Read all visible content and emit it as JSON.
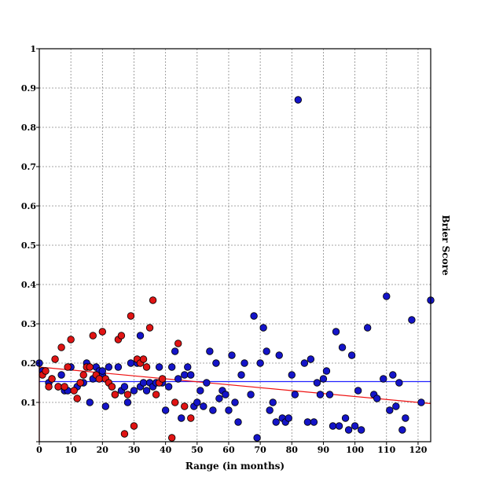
{
  "chart_data": {
    "type": "scatter",
    "title": "",
    "xlabel": "Range (in months)",
    "ylabel": "Brier Score",
    "xlim": [
      0,
      124
    ],
    "ylim": [
      0,
      1
    ],
    "grid": true,
    "legend": "none",
    "x_ticks": [
      "0",
      "10",
      "20",
      "30",
      "40",
      "50",
      "60",
      "70",
      "80",
      "90",
      "100",
      "110",
      "120"
    ],
    "y_ticks": [
      "",
      "0.1",
      "0.2",
      "0.3",
      "0.4",
      "0.5",
      "0.6",
      "0.7",
      "0.8",
      "0.9",
      "1"
    ],
    "colors": {
      "blue": "#1414c8",
      "red": "#e01414",
      "blue_line": "#2222ff",
      "red_line": "#ee1111"
    },
    "series": [
      {
        "color": "blue",
        "points": [
          [
            0,
            0.2
          ],
          [
            1,
            0.18
          ],
          [
            3,
            0.15
          ],
          [
            4,
            0.16
          ],
          [
            6,
            0.14
          ],
          [
            7,
            0.17
          ],
          [
            8,
            0.13
          ],
          [
            9,
            0.13
          ],
          [
            10,
            0.19
          ],
          [
            12,
            0.14
          ],
          [
            13,
            0.15
          ],
          [
            14,
            0.15
          ],
          [
            15,
            0.2
          ],
          [
            16,
            0.1
          ],
          [
            17,
            0.16
          ],
          [
            18,
            0.19
          ],
          [
            19,
            0.18
          ],
          [
            20,
            0.17
          ],
          [
            20,
            0.18
          ],
          [
            21,
            0.09
          ],
          [
            22,
            0.19
          ],
          [
            23,
            0.14
          ],
          [
            24,
            0.12
          ],
          [
            25,
            0.19
          ],
          [
            26,
            0.13
          ],
          [
            27,
            0.14
          ],
          [
            28,
            0.1
          ],
          [
            29,
            0.2
          ],
          [
            30,
            0.13
          ],
          [
            31,
            0.2
          ],
          [
            32,
            0.27
          ],
          [
            32,
            0.14
          ],
          [
            33,
            0.15
          ],
          [
            34,
            0.13
          ],
          [
            35,
            0.15
          ],
          [
            36,
            0.14
          ],
          [
            37,
            0.15
          ],
          [
            38,
            0.19
          ],
          [
            39,
            0.15
          ],
          [
            40,
            0.08
          ],
          [
            41,
            0.14
          ],
          [
            42,
            0.19
          ],
          [
            43,
            0.23
          ],
          [
            44,
            0.16
          ],
          [
            45,
            0.06
          ],
          [
            46,
            0.17
          ],
          [
            47,
            0.19
          ],
          [
            48,
            0.17
          ],
          [
            49,
            0.09
          ],
          [
            50,
            0.1
          ],
          [
            51,
            0.13
          ],
          [
            52,
            0.09
          ],
          [
            53,
            0.15
          ],
          [
            54,
            0.23
          ],
          [
            55,
            0.08
          ],
          [
            56,
            0.2
          ],
          [
            57,
            0.11
          ],
          [
            58,
            0.13
          ],
          [
            59,
            0.12
          ],
          [
            60,
            0.08
          ],
          [
            61,
            0.22
          ],
          [
            62,
            0.1
          ],
          [
            63,
            0.05
          ],
          [
            64,
            0.17
          ],
          [
            65,
            0.2
          ],
          [
            67,
            0.12
          ],
          [
            68,
            0.32
          ],
          [
            69,
            0.01
          ],
          [
            70,
            0.2
          ],
          [
            71,
            0.29
          ],
          [
            72,
            0.23
          ],
          [
            73,
            0.08
          ],
          [
            74,
            0.1
          ],
          [
            75,
            0.05
          ],
          [
            76,
            0.22
          ],
          [
            77,
            0.06
          ],
          [
            78,
            0.05
          ],
          [
            79,
            0.06
          ],
          [
            80,
            0.17
          ],
          [
            81,
            0.12
          ],
          [
            82,
            0.87
          ],
          [
            84,
            0.2
          ],
          [
            85,
            0.05
          ],
          [
            86,
            0.21
          ],
          [
            87,
            0.05
          ],
          [
            88,
            0.15
          ],
          [
            89,
            0.12
          ],
          [
            90,
            0.16
          ],
          [
            91,
            0.18
          ],
          [
            92,
            0.12
          ],
          [
            93,
            0.04
          ],
          [
            94,
            0.28
          ],
          [
            95,
            0.04
          ],
          [
            96,
            0.24
          ],
          [
            97,
            0.06
          ],
          [
            98,
            0.03
          ],
          [
            99,
            0.22
          ],
          [
            100,
            0.04
          ],
          [
            101,
            0.13
          ],
          [
            102,
            0.03
          ],
          [
            104,
            0.29
          ],
          [
            106,
            0.12
          ],
          [
            107,
            0.11
          ],
          [
            109,
            0.16
          ],
          [
            110,
            0.37
          ],
          [
            111,
            0.08
          ],
          [
            112,
            0.17
          ],
          [
            113,
            0.09
          ],
          [
            114,
            0.15
          ],
          [
            115,
            0.03
          ],
          [
            116,
            0.06
          ],
          [
            118,
            0.31
          ],
          [
            121,
            0.1
          ],
          [
            124,
            0.36
          ]
        ]
      },
      {
        "color": "red",
        "points": [
          [
            1,
            0.17
          ],
          [
            2,
            0.18
          ],
          [
            3,
            0.14
          ],
          [
            4,
            0.16
          ],
          [
            5,
            0.21
          ],
          [
            6,
            0.14
          ],
          [
            7,
            0.24
          ],
          [
            8,
            0.14
          ],
          [
            9,
            0.19
          ],
          [
            10,
            0.26
          ],
          [
            11,
            0.13
          ],
          [
            12,
            0.11
          ],
          [
            13,
            0.15
          ],
          [
            14,
            0.17
          ],
          [
            15,
            0.19
          ],
          [
            16,
            0.19
          ],
          [
            17,
            0.27
          ],
          [
            18,
            0.17
          ],
          [
            19,
            0.16
          ],
          [
            20,
            0.28
          ],
          [
            21,
            0.16
          ],
          [
            22,
            0.15
          ],
          [
            23,
            0.14
          ],
          [
            24,
            0.12
          ],
          [
            25,
            0.26
          ],
          [
            26,
            0.27
          ],
          [
            27,
            0.02
          ],
          [
            28,
            0.12
          ],
          [
            29,
            0.32
          ],
          [
            30,
            0.04
          ],
          [
            31,
            0.21
          ],
          [
            32,
            0.2
          ],
          [
            33,
            0.21
          ],
          [
            34,
            0.19
          ],
          [
            35,
            0.29
          ],
          [
            36,
            0.36
          ],
          [
            37,
            0.12
          ],
          [
            38,
            0.15
          ],
          [
            39,
            0.16
          ],
          [
            42,
            0.01
          ],
          [
            43,
            0.1
          ],
          [
            44,
            0.25
          ],
          [
            46,
            0.09
          ],
          [
            48,
            0.06
          ]
        ]
      }
    ],
    "trend_lines": [
      {
        "color": "blue_line",
        "points": [
          [
            0,
            0.153
          ],
          [
            124,
            0.153
          ]
        ]
      },
      {
        "color": "red_line",
        "points": [
          [
            0,
            0.19
          ],
          [
            124,
            0.097
          ]
        ]
      }
    ]
  }
}
